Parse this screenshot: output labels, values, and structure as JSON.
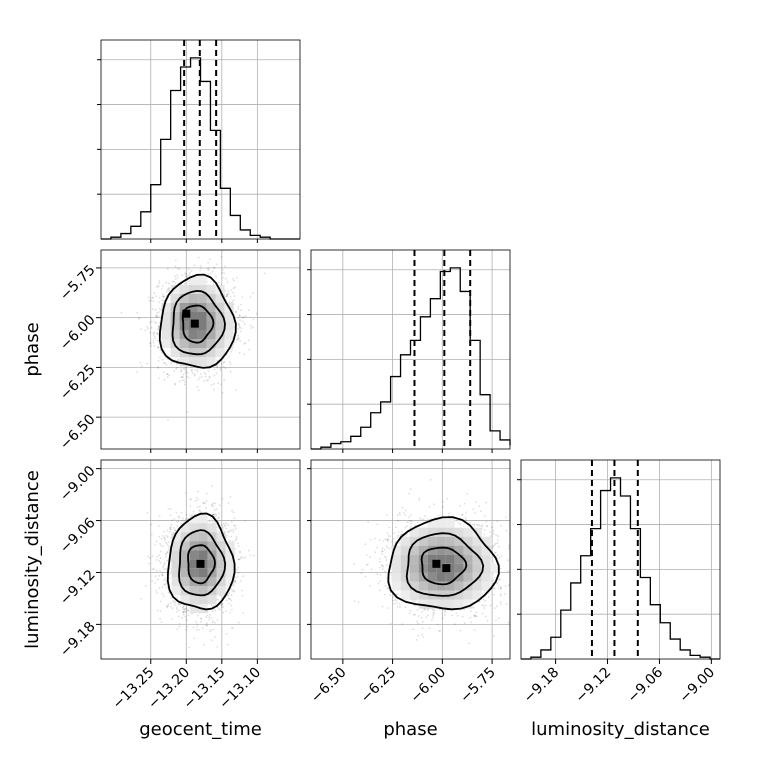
{
  "chart_data": {
    "type": "corner",
    "parameters": [
      "geocent_time",
      "phase",
      "luminosity_distance"
    ],
    "axis_labels": {
      "x": [
        "geocent_time",
        "phase",
        "luminosity_distance"
      ],
      "y": [
        "phase",
        "luminosity_distance"
      ]
    },
    "ranges": {
      "geocent_time": [
        -13.32,
        -13.04
      ],
      "phase": [
        -6.66,
        -5.66
      ],
      "luminosity_distance": [
        -9.22,
        -8.99
      ]
    },
    "ticks": {
      "geocent_time": [
        "-13.25",
        "-13.20",
        "-13.15",
        "-13.10"
      ],
      "phase": [
        "-6.50",
        "-6.25",
        "-6.00",
        "-5.75"
      ],
      "luminosity_distance": [
        "-9.18",
        "-9.12",
        "-9.06",
        "-9.00"
      ]
    },
    "quantiles": {
      "geocent_time": [
        -13.203,
        -13.181,
        -13.158
      ],
      "phase": [
        -6.14,
        -5.99,
        -5.86
      ],
      "luminosity_distance": [
        -9.138,
        -9.112,
        -9.085
      ]
    },
    "marginals": {
      "geocent_time": {
        "edges": [
          -13.32,
          -13.306,
          -13.292,
          -13.278,
          -13.264,
          -13.25,
          -13.236,
          -13.222,
          -13.208,
          -13.194,
          -13.18,
          -13.166,
          -13.152,
          -13.138,
          -13.124,
          -13.11,
          -13.096,
          -13.082,
          -13.068,
          -13.054,
          -13.04
        ],
        "counts": [
          0,
          0.01,
          0.03,
          0.07,
          0.15,
          0.3,
          0.55,
          0.82,
          0.95,
          1.0,
          0.87,
          0.6,
          0.28,
          0.13,
          0.05,
          0.02,
          0.01,
          0,
          0,
          0
        ]
      },
      "phase": {
        "edges": [
          -6.66,
          -6.61,
          -6.56,
          -6.51,
          -6.46,
          -6.41,
          -6.36,
          -6.31,
          -6.26,
          -6.21,
          -6.16,
          -6.11,
          -6.06,
          -6.01,
          -5.96,
          -5.91,
          -5.86,
          -5.81,
          -5.76,
          -5.71,
          -5.66
        ],
        "counts": [
          0,
          0.01,
          0.03,
          0.04,
          0.07,
          0.12,
          0.2,
          0.26,
          0.4,
          0.52,
          0.6,
          0.73,
          0.83,
          0.98,
          1.0,
          0.87,
          0.6,
          0.3,
          0.1,
          0.05,
          0.02
        ]
      },
      "luminosity_distance": {
        "edges": [
          -9.22,
          -9.2085,
          -9.197,
          -9.1855,
          -9.174,
          -9.1625,
          -9.151,
          -9.1395,
          -9.128,
          -9.1165,
          -9.105,
          -9.0935,
          -9.082,
          -9.0705,
          -9.059,
          -9.0475,
          -9.036,
          -9.0245,
          -9.013,
          -9.0015,
          -8.99
        ],
        "counts": [
          0,
          0.01,
          0.05,
          0.12,
          0.27,
          0.42,
          0.57,
          0.72,
          0.93,
          1.0,
          0.9,
          0.72,
          0.45,
          0.3,
          0.2,
          0.11,
          0.05,
          0.02,
          0.01,
          0
        ]
      }
    },
    "joint": [
      {
        "x": "geocent_time",
        "y": "phase",
        "center": [
          -13.185,
          -6.03
        ],
        "sigma": [
          0.025,
          0.11
        ],
        "peaks": [
          [
            -13.2,
            -5.98
          ],
          [
            -13.188,
            -6.03
          ]
        ]
      },
      {
        "x": "geocent_time",
        "y": "luminosity_distance",
        "center": [
          -13.18,
          -9.11
        ],
        "sigma": [
          0.022,
          0.026
        ],
        "peaks": [
          [
            -13.18,
            -9.11
          ]
        ]
      },
      {
        "x": "phase",
        "y": "luminosity_distance",
        "center": [
          -6.0,
          -9.112
        ],
        "sigma": [
          0.13,
          0.025
        ],
        "peaks": [
          [
            -6.03,
            -9.11
          ],
          [
            -5.98,
            -9.115
          ]
        ]
      }
    ],
    "style": {
      "line_color": "#000000",
      "grid": true,
      "grid_color": "#b0b0b0",
      "quantile_line": "dashed"
    }
  }
}
